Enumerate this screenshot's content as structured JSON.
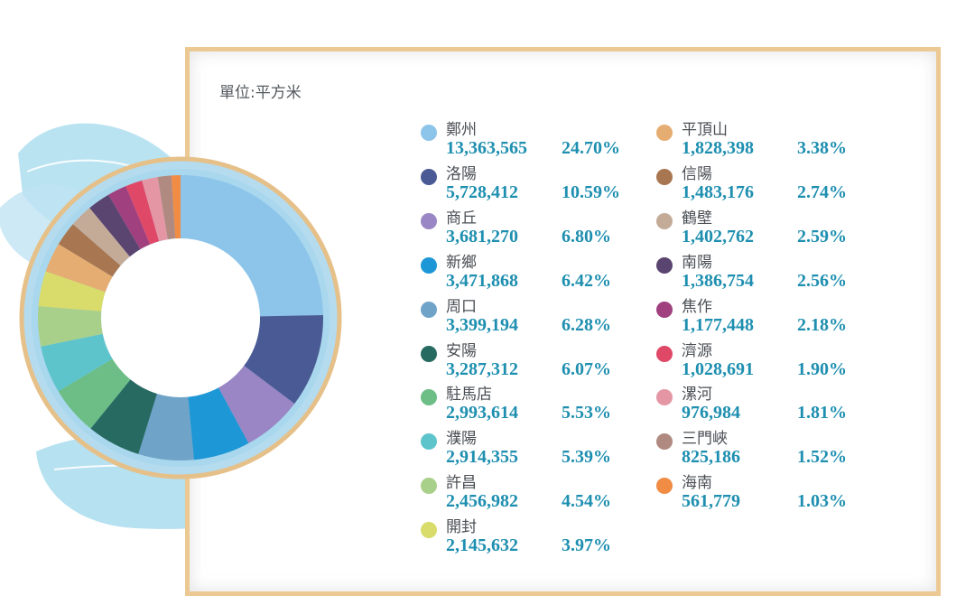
{
  "unit_label": "單位:平方米",
  "chart_data": {
    "type": "pie",
    "title": "",
    "unit": "單位:平方米",
    "grid": false,
    "legend_placement": "right",
    "slices": [
      {
        "name": "鄭州",
        "value": 13363565,
        "percent": "24.70%",
        "color": "#8cc4ea"
      },
      {
        "name": "洛陽",
        "value": 5728412,
        "percent": "10.59%",
        "color": "#4a5a94"
      },
      {
        "name": "商丘",
        "value": 3681270,
        "percent": "6.80%",
        "color": "#9a86c4"
      },
      {
        "name": "新鄉",
        "value": 3471868,
        "percent": "6.42%",
        "color": "#1d97d6"
      },
      {
        "name": "周口",
        "value": 3399194,
        "percent": "6.28%",
        "color": "#6fa3c8"
      },
      {
        "name": "安陽",
        "value": 3287312,
        "percent": "6.07%",
        "color": "#276a62"
      },
      {
        "name": "駐馬店",
        "value": 2993614,
        "percent": "5.53%",
        "color": "#6cbe86"
      },
      {
        "name": "濮陽",
        "value": 2914355,
        "percent": "5.39%",
        "color": "#5ec4cc"
      },
      {
        "name": "許昌",
        "value": 2456982,
        "percent": "4.54%",
        "color": "#a9d08a"
      },
      {
        "name": "開封",
        "value": 2145632,
        "percent": "3.97%",
        "color": "#d9dc6a"
      },
      {
        "name": "平頂山",
        "value": 1828398,
        "percent": "3.38%",
        "color": "#e6ad72"
      },
      {
        "name": "信陽",
        "value": 1483176,
        "percent": "2.74%",
        "color": "#a87650"
      },
      {
        "name": "鶴壁",
        "value": 1402762,
        "percent": "2.59%",
        "color": "#c4ab98"
      },
      {
        "name": "南陽",
        "value": 1386754,
        "percent": "2.56%",
        "color": "#5a4470"
      },
      {
        "name": "焦作",
        "value": 1177448,
        "percent": "2.18%",
        "color": "#a0407e"
      },
      {
        "name": "濟源",
        "value": 1028691,
        "percent": "1.90%",
        "color": "#e04868"
      },
      {
        "name": "漯河",
        "value": 976984,
        "percent": "1.81%",
        "color": "#e596a4"
      },
      {
        "name": "三門峽",
        "value": 825186,
        "percent": "1.52%",
        "color": "#b08a80"
      },
      {
        "name": "海南",
        "value": 561779,
        "percent": "1.03%",
        "color": "#f08c44"
      }
    ]
  },
  "legend_display": [
    {
      "name": "鄭州",
      "value": "13,363,565",
      "percent": "24.70%"
    },
    {
      "name": "洛陽",
      "value": "5,728,412",
      "percent": "10.59%"
    },
    {
      "name": "商丘",
      "value": "3,681,270",
      "percent": "6.80%"
    },
    {
      "name": "新鄉",
      "value": "3,471,868",
      "percent": "6.42%"
    },
    {
      "name": "周口",
      "value": "3,399,194",
      "percent": "6.28%"
    },
    {
      "name": "安陽",
      "value": "3,287,312",
      "percent": "6.07%"
    },
    {
      "name": "駐馬店",
      "value": "2,993,614",
      "percent": "5.53%"
    },
    {
      "name": "濮陽",
      "value": "2,914,355",
      "percent": "5.39%"
    },
    {
      "name": "許昌",
      "value": "2,456,982",
      "percent": "4.54%"
    },
    {
      "name": "開封",
      "value": "2,145,632",
      "percent": "3.97%"
    },
    {
      "name": "平頂山",
      "value": "1,828,398",
      "percent": "3.38%"
    },
    {
      "name": "信陽",
      "value": "1,483,176",
      "percent": "2.74%"
    },
    {
      "name": "鶴壁",
      "value": "1,402,762",
      "percent": "2.59%"
    },
    {
      "name": "南陽",
      "value": "1,386,754",
      "percent": "2.56%"
    },
    {
      "name": "焦作",
      "value": "1,177,448",
      "percent": "2.18%"
    },
    {
      "name": "濟源",
      "value": "1,028,691",
      "percent": "1.90%"
    },
    {
      "name": "漯河",
      "value": "976,984",
      "percent": "1.81%"
    },
    {
      "name": "三門峽",
      "value": "825,186",
      "percent": "1.52%"
    },
    {
      "name": "海南",
      "value": "561,779",
      "percent": "1.03%"
    }
  ],
  "colors": {
    "frame_border": "#ecc992",
    "value_text": "#1e8fb0",
    "leaf_decoration": "#a9dcef"
  }
}
